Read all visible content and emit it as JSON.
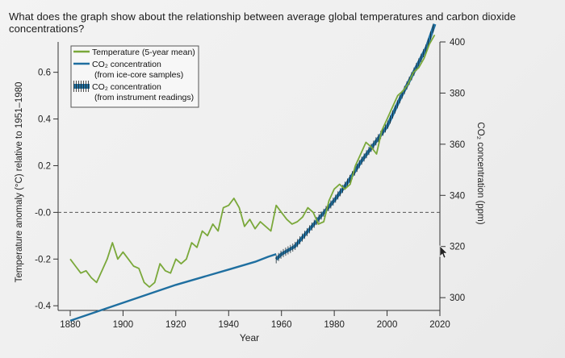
{
  "question": "What does the graph show about the relationship between average global temperatures and carbon dioxide concentrations?",
  "chart_data": {
    "type": "line",
    "xlabel": "Year",
    "ylabel_left": "Temperature anomaly (°C) relative to 1951–1980",
    "ylabel_right": "CO₂ concentration (ppm)",
    "xlim": [
      1880,
      2020
    ],
    "ylim_left": [
      -0.42,
      0.73
    ],
    "ylim_right": [
      295,
      400
    ],
    "x_ticks": [
      1880,
      1900,
      1920,
      1940,
      1960,
      1980,
      2000,
      2020
    ],
    "x_tick_labels": [
      "1880",
      "1900",
      "1920",
      "1940",
      "1960",
      "1980",
      "2000",
      "2020"
    ],
    "y_left_ticks": [
      0.6,
      0.4,
      0.2,
      0.0,
      -0.2,
      -0.4
    ],
    "y_left_tick_labels": [
      "0.6",
      "0.4",
      "0.2",
      "-0.0",
      "-0.2",
      "-0.4"
    ],
    "y_right_ticks": [
      400,
      380,
      360,
      340,
      320,
      300
    ],
    "y_right_tick_labels": [
      "400",
      "380",
      "360",
      "340",
      "320",
      "300"
    ],
    "legend": [
      {
        "label_lines": [
          "Temperature (5-year mean)"
        ],
        "color": "#7aa83a",
        "style": "line"
      },
      {
        "label_lines": [
          "CO₂ concentration",
          "(from ice-core samples)"
        ],
        "color": "#1f6fa0",
        "style": "line"
      },
      {
        "label_lines": [
          "CO₂ concentration",
          "(from instrument readings)"
        ],
        "color": "#1f6fa0",
        "style": "hatched"
      }
    ],
    "series": [
      {
        "name": "Temperature (5-year mean)",
        "axis": "left",
        "color": "#7aa83a",
        "x": [
          1880,
          1882,
          1884,
          1886,
          1888,
          1890,
          1892,
          1894,
          1896,
          1898,
          1900,
          1902,
          1904,
          1906,
          1908,
          1910,
          1912,
          1914,
          1916,
          1918,
          1920,
          1922,
          1924,
          1926,
          1928,
          1930,
          1932,
          1934,
          1936,
          1938,
          1940,
          1942,
          1944,
          1946,
          1948,
          1950,
          1952,
          1954,
          1956,
          1958,
          1960,
          1962,
          1964,
          1966,
          1968,
          1970,
          1972,
          1974,
          1976,
          1978,
          1980,
          1982,
          1984,
          1986,
          1988,
          1990,
          1992,
          1994,
          1996,
          1998,
          2000,
          2002,
          2004,
          2006,
          2008,
          2010,
          2012,
          2014,
          2016,
          2018
        ],
        "values": [
          -0.2,
          -0.23,
          -0.26,
          -0.25,
          -0.28,
          -0.3,
          -0.25,
          -0.2,
          -0.13,
          -0.2,
          -0.17,
          -0.2,
          -0.23,
          -0.24,
          -0.3,
          -0.32,
          -0.3,
          -0.22,
          -0.25,
          -0.26,
          -0.2,
          -0.22,
          -0.2,
          -0.13,
          -0.15,
          -0.08,
          -0.1,
          -0.05,
          -0.08,
          0.02,
          0.03,
          0.06,
          0.02,
          -0.06,
          -0.03,
          -0.07,
          -0.04,
          -0.06,
          -0.08,
          0.03,
          0.0,
          -0.03,
          -0.05,
          -0.04,
          -0.02,
          0.02,
          0.0,
          -0.05,
          -0.04,
          0.05,
          0.1,
          0.12,
          0.1,
          0.12,
          0.2,
          0.25,
          0.3,
          0.28,
          0.25,
          0.35,
          0.4,
          0.45,
          0.5,
          0.52,
          0.55,
          0.6,
          0.62,
          0.66,
          0.72,
          0.76
        ]
      },
      {
        "name": "CO₂ concentration (from ice-core samples)",
        "axis": "right",
        "color": "#1f6fa0",
        "x": [
          1880,
          1890,
          1900,
          1910,
          1920,
          1930,
          1940,
          1950,
          1955,
          1958
        ],
        "values": [
          291,
          294.5,
          298,
          301.5,
          305,
          308,
          311,
          314,
          316,
          317
        ]
      },
      {
        "name": "CO₂ concentration (from instrument readings)",
        "axis": "right",
        "color": "#1f6fa0",
        "x": [
          1958,
          1960,
          1965,
          1970,
          1975,
          1980,
          1985,
          1990,
          1995,
          2000,
          2005,
          2010,
          2015,
          2018
        ],
        "values": [
          315,
          317,
          320,
          326,
          332,
          338,
          345,
          353,
          360,
          367,
          378,
          388,
          398,
          407
        ]
      }
    ]
  }
}
